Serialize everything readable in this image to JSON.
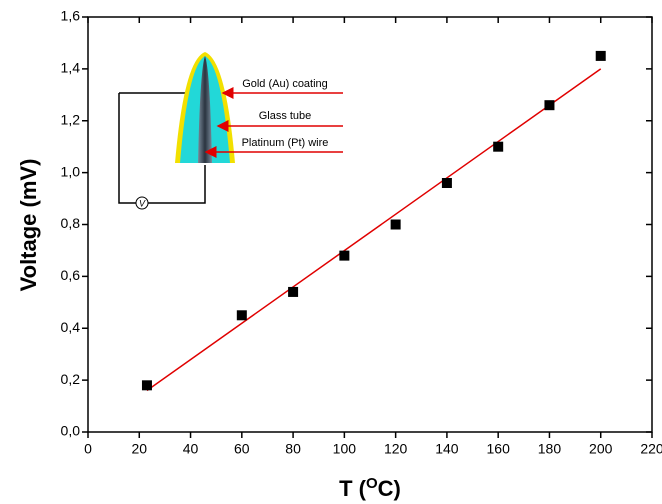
{
  "chart_data": {
    "type": "scatter",
    "xlabel": [
      "T (",
      "O",
      "C)"
    ],
    "ylabel": "Voltage (mV)",
    "x": [
      23,
      60,
      80,
      100,
      120,
      140,
      160,
      180,
      200
    ],
    "series": [
      {
        "color": "#000000",
        "x": [
          23,
          60,
          80,
          100,
          120,
          140,
          160,
          180,
          200
        ],
        "values": [
          0.18,
          0.45,
          0.54,
          0.68,
          0.8,
          0.96,
          1.1,
          1.26,
          1.45
        ]
      }
    ],
    "fit": {
      "color": "#e00000",
      "x": [
        23,
        200
      ],
      "values": [
        0.16,
        1.4
      ]
    },
    "xlim": [
      0,
      220
    ],
    "ylim": [
      0,
      1.6
    ],
    "xticks": [
      0,
      20,
      40,
      60,
      80,
      100,
      120,
      140,
      160,
      180,
      200,
      220
    ],
    "yticks": [
      {
        "value": 0,
        "label": "0,0"
      },
      {
        "value": 0.2,
        "label": "0,2"
      },
      {
        "value": 0.4,
        "label": "0,4"
      },
      {
        "value": 0.6,
        "label": "0,6"
      },
      {
        "value": 0.8,
        "label": "0,8"
      },
      {
        "value": 1.0,
        "label": "1,0"
      },
      {
        "value": 1.2,
        "label": "1,2"
      },
      {
        "value": 1.4,
        "label": "1,4"
      },
      {
        "value": 1.6,
        "label": "1,6"
      }
    ],
    "annotations": [
      "Gold (Au) coating",
      "Glass tube",
      "Platinum (Pt) wire",
      "V"
    ]
  }
}
